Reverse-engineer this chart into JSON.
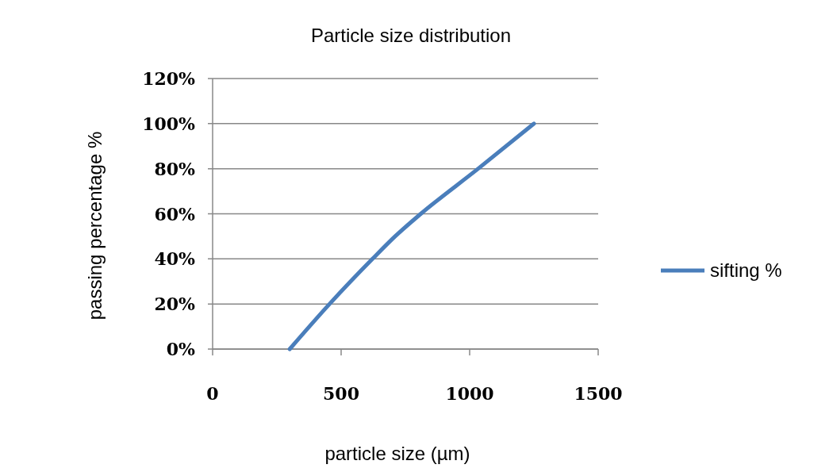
{
  "chart_data": {
    "type": "line",
    "title": "Particle size distribution",
    "xlabel": "particle size (µm)",
    "ylabel": "passing percentage  %",
    "series": [
      {
        "name": "sifting %",
        "color": "#4a7ebb",
        "x": [
          300,
          455,
          622,
          710,
          810,
          1033,
          1250
        ],
        "values": [
          0,
          20,
          40,
          50,
          60,
          80,
          100
        ]
      }
    ],
    "xlim": [
      0,
      1500
    ],
    "xticks": [
      0,
      500,
      1000,
      1500
    ],
    "ylim": [
      0,
      120
    ],
    "yticks": [
      {
        "value": 0,
        "label": "0%"
      },
      {
        "value": 20,
        "label": "20%"
      },
      {
        "value": 40,
        "label": "40%"
      },
      {
        "value": 60,
        "label": "60%"
      },
      {
        "value": 80,
        "label": "80%"
      },
      {
        "value": 100,
        "label": "100%"
      },
      {
        "value": 120,
        "label": "120%"
      }
    ],
    "grid": "y",
    "legend": "right",
    "marker": "none",
    "line_style": "solid"
  }
}
